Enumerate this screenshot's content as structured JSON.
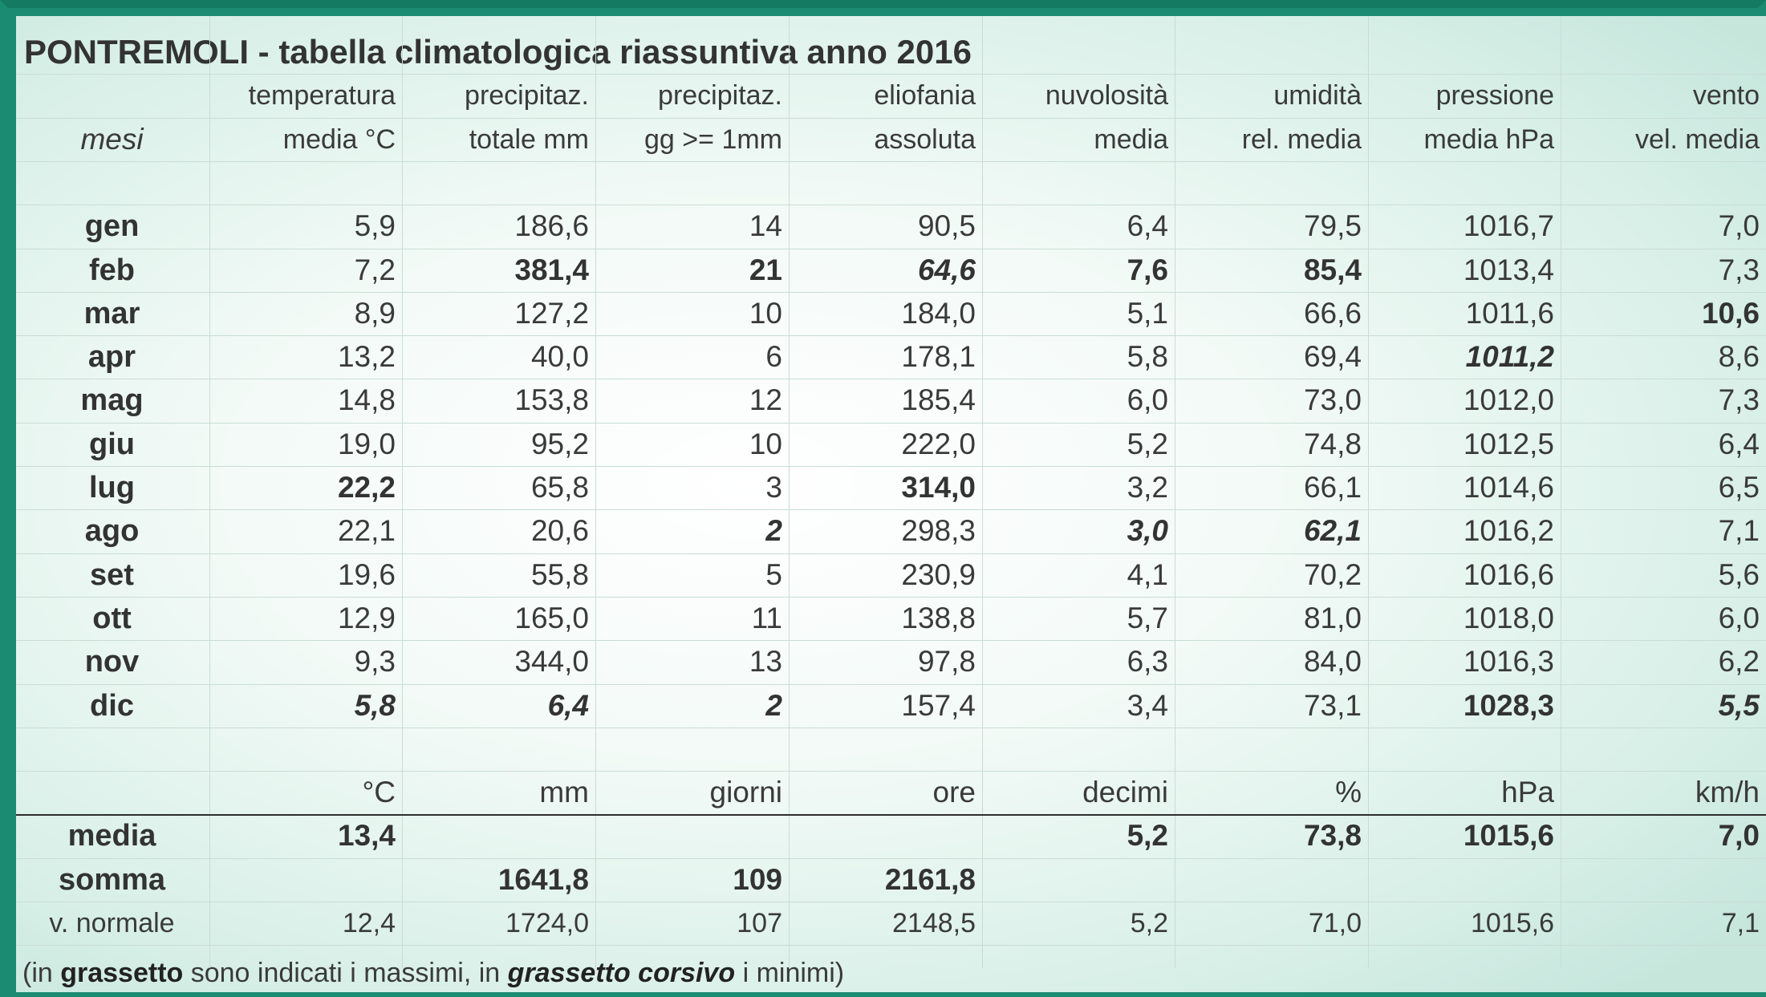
{
  "title": "PONTREMOLI - tabella climatologica riassuntiva anno 2016",
  "header_row1": [
    "",
    "temperatura",
    "precipitaz.",
    "precipitaz.",
    "eliofania",
    "nuvolosità",
    "umidità",
    "pressione",
    "vento"
  ],
  "header_row2": [
    "mesi",
    "media °C",
    "totale mm",
    "gg >= 1mm",
    "assoluta",
    "media",
    "rel. media",
    "media hPa",
    "vel. media"
  ],
  "months": [
    {
      "label": "gen",
      "cells": [
        {
          "v": "5,9",
          "s": ""
        },
        {
          "v": "186,6",
          "s": ""
        },
        {
          "v": "14",
          "s": ""
        },
        {
          "v": "90,5",
          "s": ""
        },
        {
          "v": "6,4",
          "s": ""
        },
        {
          "v": "79,5",
          "s": ""
        },
        {
          "v": "1016,7",
          "s": ""
        },
        {
          "v": "7,0",
          "s": ""
        }
      ]
    },
    {
      "label": "feb",
      "cells": [
        {
          "v": "7,2",
          "s": ""
        },
        {
          "v": "381,4",
          "s": "b"
        },
        {
          "v": "21",
          "s": "b"
        },
        {
          "v": "64,6",
          "s": "bi"
        },
        {
          "v": "7,6",
          "s": "b"
        },
        {
          "v": "85,4",
          "s": "b"
        },
        {
          "v": "1013,4",
          "s": ""
        },
        {
          "v": "7,3",
          "s": ""
        }
      ]
    },
    {
      "label": "mar",
      "cells": [
        {
          "v": "8,9",
          "s": ""
        },
        {
          "v": "127,2",
          "s": ""
        },
        {
          "v": "10",
          "s": ""
        },
        {
          "v": "184,0",
          "s": ""
        },
        {
          "v": "5,1",
          "s": ""
        },
        {
          "v": "66,6",
          "s": ""
        },
        {
          "v": "1011,6",
          "s": ""
        },
        {
          "v": "10,6",
          "s": "b"
        }
      ]
    },
    {
      "label": "apr",
      "cells": [
        {
          "v": "13,2",
          "s": ""
        },
        {
          "v": "40,0",
          "s": ""
        },
        {
          "v": "6",
          "s": ""
        },
        {
          "v": "178,1",
          "s": ""
        },
        {
          "v": "5,8",
          "s": ""
        },
        {
          "v": "69,4",
          "s": ""
        },
        {
          "v": "1011,2",
          "s": "bi"
        },
        {
          "v": "8,6",
          "s": ""
        }
      ]
    },
    {
      "label": "mag",
      "cells": [
        {
          "v": "14,8",
          "s": ""
        },
        {
          "v": "153,8",
          "s": ""
        },
        {
          "v": "12",
          "s": ""
        },
        {
          "v": "185,4",
          "s": ""
        },
        {
          "v": "6,0",
          "s": ""
        },
        {
          "v": "73,0",
          "s": ""
        },
        {
          "v": "1012,0",
          "s": ""
        },
        {
          "v": "7,3",
          "s": ""
        }
      ]
    },
    {
      "label": "giu",
      "cells": [
        {
          "v": "19,0",
          "s": ""
        },
        {
          "v": "95,2",
          "s": ""
        },
        {
          "v": "10",
          "s": ""
        },
        {
          "v": "222,0",
          "s": ""
        },
        {
          "v": "5,2",
          "s": ""
        },
        {
          "v": "74,8",
          "s": ""
        },
        {
          "v": "1012,5",
          "s": ""
        },
        {
          "v": "6,4",
          "s": ""
        }
      ]
    },
    {
      "label": "lug",
      "cells": [
        {
          "v": "22,2",
          "s": "b"
        },
        {
          "v": "65,8",
          "s": ""
        },
        {
          "v": "3",
          "s": ""
        },
        {
          "v": "314,0",
          "s": "b"
        },
        {
          "v": "3,2",
          "s": ""
        },
        {
          "v": "66,1",
          "s": ""
        },
        {
          "v": "1014,6",
          "s": ""
        },
        {
          "v": "6,5",
          "s": ""
        }
      ]
    },
    {
      "label": "ago",
      "cells": [
        {
          "v": "22,1",
          "s": ""
        },
        {
          "v": "20,6",
          "s": ""
        },
        {
          "v": "2",
          "s": "bi"
        },
        {
          "v": "298,3",
          "s": ""
        },
        {
          "v": "3,0",
          "s": "bi"
        },
        {
          "v": "62,1",
          "s": "bi"
        },
        {
          "v": "1016,2",
          "s": ""
        },
        {
          "v": "7,1",
          "s": ""
        }
      ]
    },
    {
      "label": "set",
      "cells": [
        {
          "v": "19,6",
          "s": ""
        },
        {
          "v": "55,8",
          "s": ""
        },
        {
          "v": "5",
          "s": ""
        },
        {
          "v": "230,9",
          "s": ""
        },
        {
          "v": "4,1",
          "s": ""
        },
        {
          "v": "70,2",
          "s": ""
        },
        {
          "v": "1016,6",
          "s": ""
        },
        {
          "v": "5,6",
          "s": ""
        }
      ]
    },
    {
      "label": "ott",
      "cells": [
        {
          "v": "12,9",
          "s": ""
        },
        {
          "v": "165,0",
          "s": ""
        },
        {
          "v": "11",
          "s": ""
        },
        {
          "v": "138,8",
          "s": ""
        },
        {
          "v": "5,7",
          "s": ""
        },
        {
          "v": "81,0",
          "s": ""
        },
        {
          "v": "1018,0",
          "s": ""
        },
        {
          "v": "6,0",
          "s": ""
        }
      ]
    },
    {
      "label": "nov",
      "cells": [
        {
          "v": "9,3",
          "s": ""
        },
        {
          "v": "344,0",
          "s": ""
        },
        {
          "v": "13",
          "s": ""
        },
        {
          "v": "97,8",
          "s": ""
        },
        {
          "v": "6,3",
          "s": ""
        },
        {
          "v": "84,0",
          "s": ""
        },
        {
          "v": "1016,3",
          "s": ""
        },
        {
          "v": "6,2",
          "s": ""
        }
      ]
    },
    {
      "label": "dic",
      "cells": [
        {
          "v": "5,8",
          "s": "bi"
        },
        {
          "v": "6,4",
          "s": "bi"
        },
        {
          "v": "2",
          "s": "bi"
        },
        {
          "v": "157,4",
          "s": ""
        },
        {
          "v": "3,4",
          "s": ""
        },
        {
          "v": "73,1",
          "s": ""
        },
        {
          "v": "1028,3",
          "s": "b"
        },
        {
          "v": "5,5",
          "s": "bi"
        }
      ]
    }
  ],
  "units": [
    "°C",
    "mm",
    "giorni",
    "ore",
    "decimi",
    "%",
    "hPa",
    "km/h"
  ],
  "summary": [
    {
      "label": "media",
      "cells": [
        "13,4",
        "",
        "",
        "",
        "5,2",
        "73,8",
        "1015,6",
        "7,0"
      ],
      "style": "b"
    },
    {
      "label": "somma",
      "cells": [
        "",
        "1641,8",
        "109",
        "2161,8",
        "",
        "",
        "",
        ""
      ],
      "style": "b"
    },
    {
      "label": "v. normale",
      "cells": [
        "12,4",
        "1724,0",
        "107",
        "2148,5",
        "5,2",
        "71,0",
        "1015,6",
        "7,1"
      ],
      "style": ""
    }
  ],
  "footnote": {
    "t1": "(in ",
    "t2": "grassetto",
    "t3": " sono indicati i massimi, in ",
    "t4": "grassetto corsivo",
    "t5": " i minimi)"
  }
}
